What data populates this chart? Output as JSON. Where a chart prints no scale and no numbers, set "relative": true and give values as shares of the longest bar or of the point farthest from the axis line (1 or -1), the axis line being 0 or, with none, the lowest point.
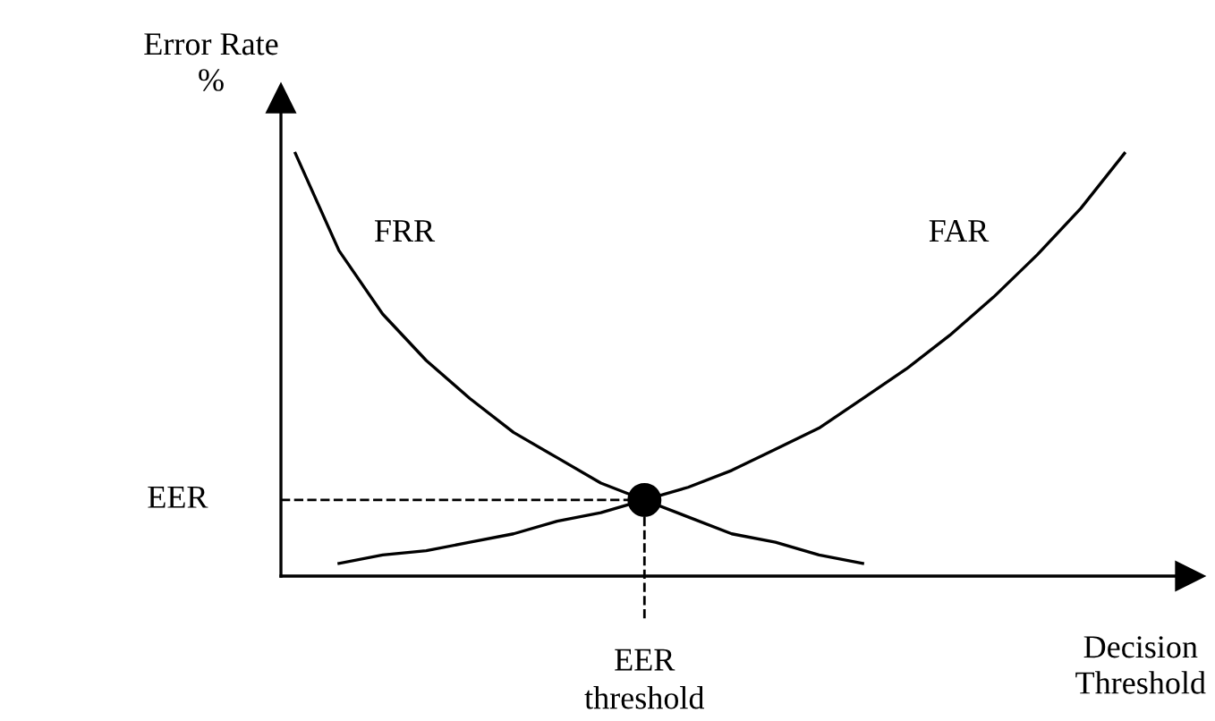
{
  "chart_data": {
    "type": "line",
    "relative": true,
    "xlabel": "Decision\nThreshold",
    "ylabel": "Error Rate\n%",
    "categories": [
      null,
      null,
      null,
      null,
      null,
      null,
      null,
      null,
      null,
      null,
      null,
      null,
      null,
      null,
      null,
      null,
      null,
      null,
      null,
      null
    ],
    "series": [
      {
        "name": "FRR",
        "color": "#000000",
        "values": [
          1,
          0.77,
          0.62,
          0.51,
          0.42,
          0.34,
          0.28,
          0.22,
          0.18,
          0.14,
          0.1,
          0.08,
          0.05,
          0.03,
          null,
          null,
          null,
          null,
          null,
          null
        ]
      },
      {
        "name": "FAR",
        "color": "#000000",
        "values": [
          null,
          0.03,
          0.05,
          0.06,
          0.08,
          0.1,
          0.13,
          0.15,
          0.18,
          0.21,
          0.25,
          0.3,
          0.35,
          0.42,
          0.49,
          0.57,
          0.66,
          0.76,
          0.87,
          1
        ]
      }
    ],
    "annotations": [
      "EER",
      "EER\nthreshold"
    ],
    "marker": "none",
    "line_style": "solid",
    "grid": false,
    "legend": false
  }
}
